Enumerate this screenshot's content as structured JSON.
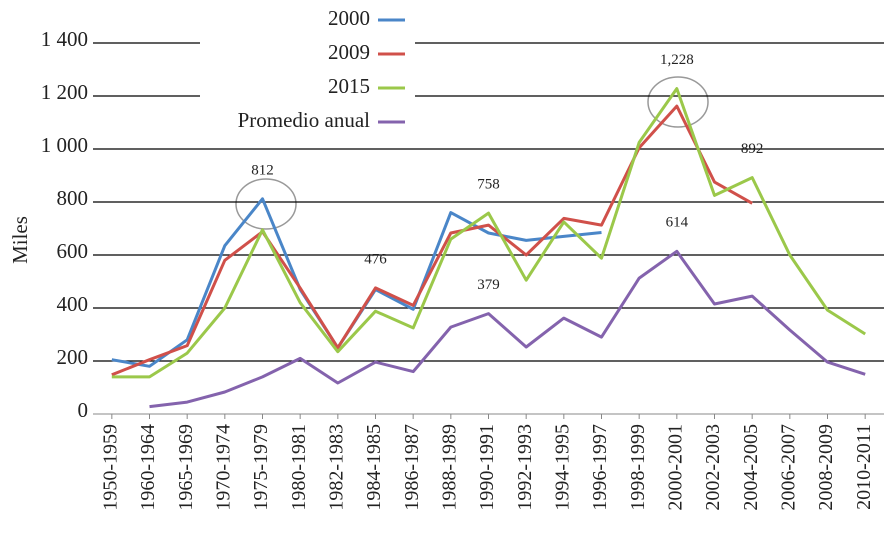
{
  "chart_data": {
    "type": "line",
    "y_label": "Miles",
    "categories": [
      "1950-1959",
      "1960-1964",
      "1965-1969",
      "1970-1974",
      "1975-1979",
      "1980-1981",
      "1982-1983",
      "1984-1985",
      "1986-1987",
      "1988-1989",
      "1990-1991",
      "1992-1993",
      "1994-1995",
      "1996-1997",
      "1998-1999",
      "2000-2001",
      "2002-2003",
      "2004-2005",
      "2006-2007",
      "2008-2009",
      "2010-2011"
    ],
    "series": [
      {
        "name": "2000",
        "color": "#4a86c8",
        "values": [
          205,
          180,
          280,
          635,
          812,
          470,
          250,
          470,
          395,
          760,
          683,
          655,
          670,
          685,
          null,
          null,
          null,
          null,
          null,
          null,
          null
        ],
        "value_labels": [
          null,
          null,
          null,
          null,
          "812",
          null,
          null,
          null,
          null,
          null,
          null,
          null,
          null,
          null,
          null,
          null,
          null,
          null,
          null,
          null,
          null
        ]
      },
      {
        "name": "2009",
        "color": "#d0504a",
        "values": [
          148,
          205,
          258,
          580,
          688,
          475,
          250,
          476,
          410,
          683,
          713,
          600,
          738,
          713,
          1005,
          1162,
          875,
          795,
          null,
          null,
          null
        ],
        "value_labels": [
          null,
          null,
          null,
          null,
          null,
          null,
          null,
          "476",
          null,
          null,
          null,
          null,
          null,
          null,
          null,
          null,
          null,
          null,
          null,
          null,
          null
        ]
      },
      {
        "name": "2015",
        "color": "#9bc84a",
        "values": [
          140,
          140,
          230,
          400,
          695,
          420,
          235,
          388,
          325,
          660,
          758,
          505,
          725,
          588,
          1025,
          1228,
          825,
          892,
          600,
          392,
          302
        ],
        "value_labels": [
          null,
          null,
          null,
          null,
          null,
          null,
          null,
          null,
          null,
          null,
          "758",
          null,
          null,
          null,
          null,
          "1,228",
          null,
          "892",
          null,
          null,
          null
        ]
      },
      {
        "name": "Promedio anual",
        "color": "#8463ad",
        "values": [
          null,
          28,
          45,
          83,
          140,
          210,
          117,
          196,
          160,
          328,
          379,
          253,
          362,
          290,
          513,
          614,
          415,
          445,
          317,
          196,
          150
        ],
        "value_labels": [
          null,
          null,
          null,
          null,
          null,
          null,
          null,
          null,
          null,
          null,
          "379",
          null,
          null,
          null,
          null,
          "614",
          null,
          null,
          null,
          null,
          null
        ]
      }
    ],
    "ylim": [
      0,
      1400
    ],
    "yticks": [
      0,
      200,
      400,
      600,
      800,
      {
        "value": 1000,
        "label": "1 000"
      },
      {
        "value": 1200,
        "label": "1 200"
      },
      {
        "value": 1400,
        "label": "1 400"
      }
    ],
    "grid": true,
    "legend": "top"
  }
}
